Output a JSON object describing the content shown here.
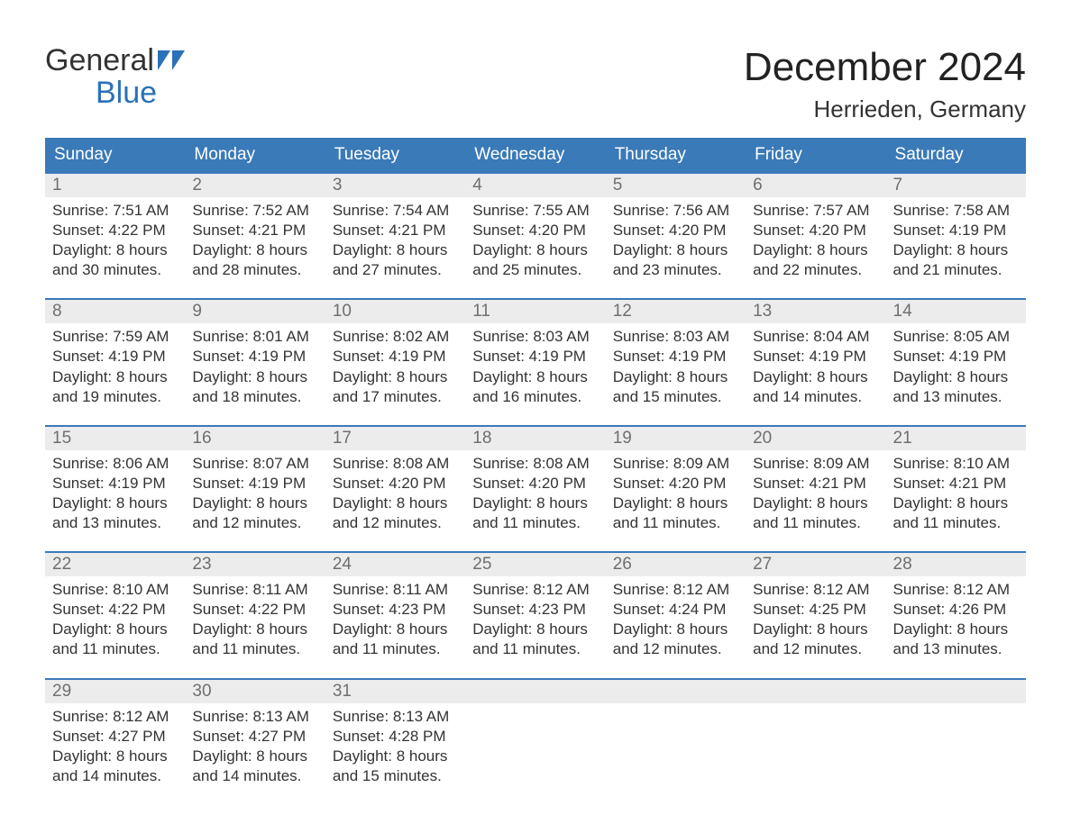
{
  "logo": {
    "line1": "General",
    "line2": "Blue"
  },
  "title": "December 2024",
  "location": "Herrieden, Germany",
  "colors": {
    "header_bg": "#3a7ab8",
    "week_border": "#3a7ab8",
    "daynum_bg": "#ececec",
    "daynum_color": "#6f6f6f",
    "text": "#333333",
    "logo_blue": "#2a71b8"
  },
  "day_headers": [
    "Sunday",
    "Monday",
    "Tuesday",
    "Wednesday",
    "Thursday",
    "Friday",
    "Saturday"
  ],
  "weeks": [
    [
      {
        "num": "1",
        "sunrise": "7:51 AM",
        "sunset": "4:22 PM",
        "daylight_hours": "8",
        "daylight_minutes": "30"
      },
      {
        "num": "2",
        "sunrise": "7:52 AM",
        "sunset": "4:21 PM",
        "daylight_hours": "8",
        "daylight_minutes": "28"
      },
      {
        "num": "3",
        "sunrise": "7:54 AM",
        "sunset": "4:21 PM",
        "daylight_hours": "8",
        "daylight_minutes": "27"
      },
      {
        "num": "4",
        "sunrise": "7:55 AM",
        "sunset": "4:20 PM",
        "daylight_hours": "8",
        "daylight_minutes": "25"
      },
      {
        "num": "5",
        "sunrise": "7:56 AM",
        "sunset": "4:20 PM",
        "daylight_hours": "8",
        "daylight_minutes": "23"
      },
      {
        "num": "6",
        "sunrise": "7:57 AM",
        "sunset": "4:20 PM",
        "daylight_hours": "8",
        "daylight_minutes": "22"
      },
      {
        "num": "7",
        "sunrise": "7:58 AM",
        "sunset": "4:19 PM",
        "daylight_hours": "8",
        "daylight_minutes": "21"
      }
    ],
    [
      {
        "num": "8",
        "sunrise": "7:59 AM",
        "sunset": "4:19 PM",
        "daylight_hours": "8",
        "daylight_minutes": "19"
      },
      {
        "num": "9",
        "sunrise": "8:01 AM",
        "sunset": "4:19 PM",
        "daylight_hours": "8",
        "daylight_minutes": "18"
      },
      {
        "num": "10",
        "sunrise": "8:02 AM",
        "sunset": "4:19 PM",
        "daylight_hours": "8",
        "daylight_minutes": "17"
      },
      {
        "num": "11",
        "sunrise": "8:03 AM",
        "sunset": "4:19 PM",
        "daylight_hours": "8",
        "daylight_minutes": "16"
      },
      {
        "num": "12",
        "sunrise": "8:03 AM",
        "sunset": "4:19 PM",
        "daylight_hours": "8",
        "daylight_minutes": "15"
      },
      {
        "num": "13",
        "sunrise": "8:04 AM",
        "sunset": "4:19 PM",
        "daylight_hours": "8",
        "daylight_minutes": "14"
      },
      {
        "num": "14",
        "sunrise": "8:05 AM",
        "sunset": "4:19 PM",
        "daylight_hours": "8",
        "daylight_minutes": "13"
      }
    ],
    [
      {
        "num": "15",
        "sunrise": "8:06 AM",
        "sunset": "4:19 PM",
        "daylight_hours": "8",
        "daylight_minutes": "13"
      },
      {
        "num": "16",
        "sunrise": "8:07 AM",
        "sunset": "4:19 PM",
        "daylight_hours": "8",
        "daylight_minutes": "12"
      },
      {
        "num": "17",
        "sunrise": "8:08 AM",
        "sunset": "4:20 PM",
        "daylight_hours": "8",
        "daylight_minutes": "12"
      },
      {
        "num": "18",
        "sunrise": "8:08 AM",
        "sunset": "4:20 PM",
        "daylight_hours": "8",
        "daylight_minutes": "11"
      },
      {
        "num": "19",
        "sunrise": "8:09 AM",
        "sunset": "4:20 PM",
        "daylight_hours": "8",
        "daylight_minutes": "11"
      },
      {
        "num": "20",
        "sunrise": "8:09 AM",
        "sunset": "4:21 PM",
        "daylight_hours": "8",
        "daylight_minutes": "11"
      },
      {
        "num": "21",
        "sunrise": "8:10 AM",
        "sunset": "4:21 PM",
        "daylight_hours": "8",
        "daylight_minutes": "11"
      }
    ],
    [
      {
        "num": "22",
        "sunrise": "8:10 AM",
        "sunset": "4:22 PM",
        "daylight_hours": "8",
        "daylight_minutes": "11"
      },
      {
        "num": "23",
        "sunrise": "8:11 AM",
        "sunset": "4:22 PM",
        "daylight_hours": "8",
        "daylight_minutes": "11"
      },
      {
        "num": "24",
        "sunrise": "8:11 AM",
        "sunset": "4:23 PM",
        "daylight_hours": "8",
        "daylight_minutes": "11"
      },
      {
        "num": "25",
        "sunrise": "8:12 AM",
        "sunset": "4:23 PM",
        "daylight_hours": "8",
        "daylight_minutes": "11"
      },
      {
        "num": "26",
        "sunrise": "8:12 AM",
        "sunset": "4:24 PM",
        "daylight_hours": "8",
        "daylight_minutes": "12"
      },
      {
        "num": "27",
        "sunrise": "8:12 AM",
        "sunset": "4:25 PM",
        "daylight_hours": "8",
        "daylight_minutes": "12"
      },
      {
        "num": "28",
        "sunrise": "8:12 AM",
        "sunset": "4:26 PM",
        "daylight_hours": "8",
        "daylight_minutes": "13"
      }
    ],
    [
      {
        "num": "29",
        "sunrise": "8:12 AM",
        "sunset": "4:27 PM",
        "daylight_hours": "8",
        "daylight_minutes": "14"
      },
      {
        "num": "30",
        "sunrise": "8:13 AM",
        "sunset": "4:27 PM",
        "daylight_hours": "8",
        "daylight_minutes": "14"
      },
      {
        "num": "31",
        "sunrise": "8:13 AM",
        "sunset": "4:28 PM",
        "daylight_hours": "8",
        "daylight_minutes": "15"
      },
      {
        "empty": true
      },
      {
        "empty": true
      },
      {
        "empty": true
      },
      {
        "empty": true
      }
    ]
  ],
  "labels": {
    "sunrise_prefix": "Sunrise: ",
    "sunset_prefix": "Sunset: ",
    "daylight_prefix": "Daylight: ",
    "hours_word": " hours",
    "and_word": "and ",
    "minutes_word": " minutes."
  }
}
